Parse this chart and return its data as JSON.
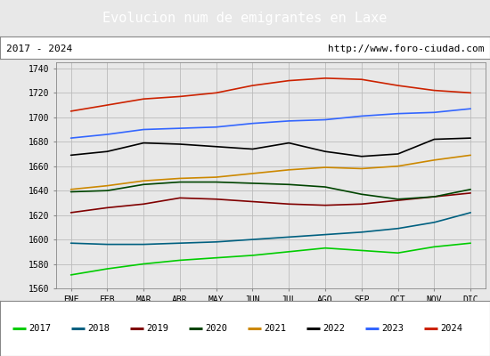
{
  "title": "Evolucion num de emigrantes en Laxe",
  "title_bg": "#5b9bd5",
  "subtitle_left": "2017 - 2024",
  "subtitle_right": "http://www.foro-ciudad.com",
  "months": [
    "ENE",
    "FEB",
    "MAR",
    "ABR",
    "MAY",
    "JUN",
    "JUL",
    "AGO",
    "SEP",
    "OCT",
    "NOV",
    "DIC"
  ],
  "ylim": [
    1560,
    1745
  ],
  "yticks": [
    1560,
    1580,
    1600,
    1620,
    1640,
    1660,
    1680,
    1700,
    1720,
    1740
  ],
  "series": {
    "2017": {
      "color": "#00cc00",
      "data": [
        1571,
        1576,
        1580,
        1583,
        1585,
        1587,
        1590,
        1593,
        1591,
        1589,
        1594,
        1597
      ]
    },
    "2018": {
      "color": "#006080",
      "data": [
        1597,
        1596,
        1596,
        1597,
        1598,
        1600,
        1602,
        1604,
        1606,
        1609,
        1614,
        1622
      ]
    },
    "2019": {
      "color": "#800000",
      "data": [
        1622,
        1626,
        1629,
        1634,
        1633,
        1631,
        1629,
        1628,
        1629,
        1632,
        1635,
        1638
      ]
    },
    "2020": {
      "color": "#004400",
      "data": [
        1639,
        1640,
        1645,
        1647,
        1647,
        1646,
        1645,
        1643,
        1637,
        1633,
        1635,
        1641
      ]
    },
    "2021": {
      "color": "#cc8800",
      "data": [
        1641,
        1644,
        1648,
        1650,
        1651,
        1654,
        1657,
        1659,
        1658,
        1660,
        1665,
        1669
      ]
    },
    "2022": {
      "color": "#000000",
      "data": [
        1669,
        1672,
        1679,
        1678,
        1676,
        1674,
        1679,
        1672,
        1668,
        1670,
        1682,
        1683
      ]
    },
    "2023": {
      "color": "#3366ff",
      "data": [
        1683,
        1686,
        1690,
        1691,
        1692,
        1695,
        1697,
        1698,
        1701,
        1703,
        1704,
        1707
      ]
    },
    "2024": {
      "color": "#cc2200",
      "data": [
        1705,
        1710,
        1715,
        1717,
        1720,
        1726,
        1730,
        1732,
        1731,
        1726,
        1722,
        1720
      ]
    }
  },
  "bg_color": "#e8e8e8",
  "plot_bg": "#e8e8e8",
  "grid_color": "#bbbbbb"
}
